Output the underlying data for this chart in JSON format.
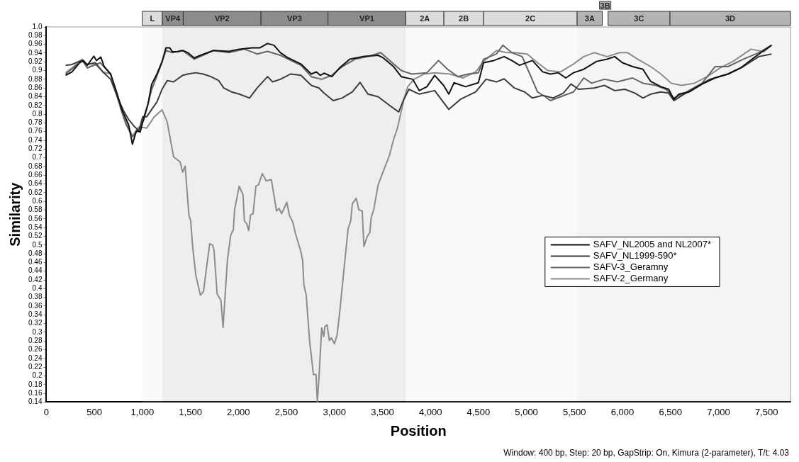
{
  "chart_data": {
    "type": "line",
    "xlabel": "Position",
    "ylabel": "Similarity",
    "annotations": [
      "Window: 400 bp, Step: 20 bp, GapStrip: On, Kimura (2-parameter), T/t: 4.03"
    ],
    "xlim": [
      0,
      7750
    ],
    "xticks": [
      0,
      {
        "value": 500,
        "label": "500"
      },
      {
        "value": 1000,
        "label": "1,000"
      },
      {
        "value": 1500,
        "label": "1,500"
      },
      {
        "value": 2000,
        "label": "2,000"
      },
      {
        "value": 2500,
        "label": "2,500"
      },
      {
        "value": 3000,
        "label": "3,000"
      },
      {
        "value": 3500,
        "label": "3,500"
      },
      {
        "value": 4000,
        "label": "4,000"
      },
      {
        "value": 4500,
        "label": "4,500"
      },
      {
        "value": 5000,
        "label": "5,000"
      },
      {
        "value": 5500,
        "label": "5,500"
      },
      {
        "value": 6000,
        "label": "6,000"
      },
      {
        "value": 6500,
        "label": "6,500"
      },
      {
        "value": 7000,
        "label": "7,000"
      },
      {
        "value": 7500,
        "label": "7,500"
      }
    ],
    "ylim": [
      0.14,
      1.0
    ],
    "yticks": [
      0.14,
      0.16,
      0.18,
      0.2,
      0.22,
      0.24,
      0.26,
      0.28,
      0.3,
      0.32,
      0.34,
      0.36,
      0.38,
      0.4,
      0.42,
      0.44,
      0.46,
      0.48,
      0.5,
      0.52,
      0.54,
      0.56,
      0.58,
      0.6,
      0.62,
      0.64,
      0.66,
      0.68,
      0.7,
      0.72,
      0.74,
      0.76,
      0.78,
      0.8,
      0.82,
      0.84,
      0.86,
      0.88,
      0.9,
      0.92,
      0.94,
      0.96,
      0.98,
      {
        "value": 1.0,
        "label": "1.0"
      }
    ],
    "grid": false,
    "legend": "right",
    "marker": "none",
    "line_style": "solid",
    "bands": [
      {
        "axis": "x",
        "from": 998,
        "to": 1208,
        "label": "L",
        "color": "#dcdcdc"
      },
      {
        "axis": "x",
        "from": 1208,
        "to": 1425,
        "label": "VP4",
        "color": "#8c8c8c"
      },
      {
        "axis": "x",
        "from": 1425,
        "to": 2235,
        "label": "VP2",
        "color": "#8c8c8c"
      },
      {
        "axis": "x",
        "from": 2235,
        "to": 2933,
        "label": "VP3",
        "color": "#8c8c8c"
      },
      {
        "axis": "x",
        "from": 2933,
        "to": 3743,
        "label": "VP1",
        "color": "#8c8c8c"
      },
      {
        "axis": "x",
        "from": 3743,
        "to": 4140,
        "label": "2A",
        "color": "#dcdcdc"
      },
      {
        "axis": "x",
        "from": 4140,
        "to": 4553,
        "label": "2B",
        "color": "#dcdcdc"
      },
      {
        "axis": "x",
        "from": 4553,
        "to": 5528,
        "label": "2C",
        "color": "#dcdcdc"
      },
      {
        "axis": "x",
        "from": 5528,
        "to": 5790,
        "label": "3A",
        "color": "#b4b4b4"
      },
      {
        "axis": "x",
        "from": 5790,
        "to": 5850,
        "label": "3B",
        "color": "#b4b4b4"
      },
      {
        "axis": "x",
        "from": 5850,
        "to": 6495,
        "label": "3C",
        "color": "#b4b4b4"
      },
      {
        "axis": "x",
        "from": 6495,
        "to": 7750,
        "label": "3D",
        "color": "#b4b4b4"
      }
    ],
    "series": [
      {
        "name": "SAFV_NL2005 and NL2007*",
        "color": "#111111",
        "x": [
          200,
          267,
          347,
          386,
          427,
          494,
          521,
          567,
          602,
          669,
          722,
          790,
          856,
          896,
          937,
          977,
          1017,
          1057,
          1097,
          1151,
          1204,
          1245,
          1285,
          1312,
          1365,
          1419,
          1473,
          1539,
          1606,
          1740,
          1901,
          2008,
          2142,
          2222,
          2303,
          2370,
          2437,
          2518,
          2651,
          2759,
          2812,
          2852,
          2893,
          2973,
          3053,
          3160,
          3294,
          3455,
          3508,
          3616,
          3696,
          3816,
          3883,
          3963,
          4044,
          4137,
          4191,
          4245,
          4365,
          4499,
          4553,
          4660,
          4767,
          4847,
          4928,
          5062,
          5169,
          5249,
          5330,
          5410,
          5490,
          5597,
          5731,
          5839,
          5919,
          5999,
          6106,
          6213,
          6294,
          6401,
          6481,
          6535,
          6589,
          6696,
          6830,
          6964,
          7098,
          7232,
          7366,
          7473,
          7553
        ],
        "values": [
          0.889,
          0.897,
          0.918,
          0.923,
          0.912,
          0.933,
          0.923,
          0.931,
          0.909,
          0.892,
          0.857,
          0.808,
          0.776,
          0.731,
          0.762,
          0.759,
          0.794,
          0.822,
          0.869,
          0.892,
          0.92,
          0.952,
          0.952,
          0.943,
          0.943,
          0.946,
          0.941,
          0.929,
          0.935,
          0.946,
          0.944,
          0.949,
          0.952,
          0.952,
          0.962,
          0.958,
          0.941,
          0.929,
          0.915,
          0.892,
          0.897,
          0.889,
          0.894,
          0.886,
          0.906,
          0.926,
          0.932,
          0.935,
          0.929,
          0.909,
          0.886,
          0.88,
          0.854,
          0.863,
          0.889,
          0.866,
          0.846,
          0.872,
          0.863,
          0.872,
          0.918,
          0.923,
          0.932,
          0.923,
          0.912,
          0.923,
          0.897,
          0.892,
          0.895,
          0.883,
          0.895,
          0.903,
          0.921,
          0.926,
          0.932,
          0.918,
          0.909,
          0.903,
          0.875,
          0.863,
          0.857,
          0.834,
          0.846,
          0.851,
          0.869,
          0.883,
          0.892,
          0.906,
          0.929,
          0.946,
          0.958
        ]
      },
      {
        "name": "SAFV_NL1999-590*",
        "color": "#3c3c3c",
        "x": [
          200,
          267,
          361,
          427,
          508,
          588,
          669,
          749,
          803,
          856,
          910,
          964,
          1003,
          1044,
          1097,
          1151,
          1204,
          1258,
          1325,
          1419,
          1473,
          1553,
          1633,
          1713,
          1794,
          1847,
          1928,
          2008,
          2115,
          2195,
          2303,
          2356,
          2437,
          2544,
          2651,
          2759,
          2839,
          2893,
          2987,
          3080,
          3187,
          3267,
          3348,
          3455,
          3562,
          3669,
          3723,
          3776,
          3883,
          4044,
          4191,
          4312,
          4472,
          4579,
          4687,
          4767,
          4874,
          4981,
          5062,
          5169,
          5276,
          5383,
          5464,
          5544,
          5705,
          5812,
          5919,
          6026,
          6133,
          6213,
          6294,
          6401,
          6481,
          6535,
          6642,
          6776,
          6910,
          7098,
          7258,
          7419,
          7553
        ],
        "values": [
          0.912,
          0.914,
          0.923,
          0.914,
          0.918,
          0.897,
          0.88,
          0.834,
          0.808,
          0.788,
          0.773,
          0.762,
          0.794,
          0.794,
          0.811,
          0.828,
          0.857,
          0.877,
          0.874,
          0.889,
          0.892,
          0.895,
          0.892,
          0.886,
          0.877,
          0.86,
          0.851,
          0.846,
          0.837,
          0.86,
          0.886,
          0.874,
          0.88,
          0.892,
          0.889,
          0.866,
          0.86,
          0.848,
          0.831,
          0.837,
          0.851,
          0.873,
          0.846,
          0.84,
          0.822,
          0.805,
          0.834,
          0.857,
          0.846,
          0.854,
          0.811,
          0.834,
          0.851,
          0.88,
          0.874,
          0.881,
          0.86,
          0.851,
          0.837,
          0.843,
          0.837,
          0.848,
          0.869,
          0.857,
          0.86,
          0.866,
          0.854,
          0.857,
          0.848,
          0.837,
          0.846,
          0.851,
          0.848,
          0.831,
          0.846,
          0.863,
          0.88,
          0.892,
          0.909,
          0.932,
          0.938
        ]
      },
      {
        "name": "SAFV-3_Geramny",
        "color": "#666666",
        "x": [
          200,
          374,
          427,
          561,
          669,
          776,
          830,
          896,
          964,
          1017,
          1097,
          1178,
          1245,
          1312,
          1419,
          1539,
          1740,
          1901,
          2062,
          2195,
          2303,
          2437,
          2651,
          2759,
          2866,
          2973,
          3080,
          3214,
          3348,
          3482,
          3616,
          3696,
          3803,
          3963,
          4084,
          4178,
          4285,
          4392,
          4499,
          4553,
          4687,
          4754,
          4847,
          4955,
          5035,
          5115,
          5196,
          5249,
          5356,
          5490,
          5597,
          5678,
          5812,
          5946,
          6106,
          6213,
          6347,
          6454,
          6535,
          6669,
          6830,
          6964,
          7098,
          7258,
          7419,
          7553
        ],
        "values": [
          0.892,
          0.923,
          0.906,
          0.918,
          0.892,
          0.811,
          0.776,
          0.748,
          0.765,
          0.788,
          0.857,
          0.903,
          0.946,
          0.941,
          0.946,
          0.926,
          0.946,
          0.941,
          0.949,
          0.938,
          0.944,
          0.935,
          0.912,
          0.886,
          0.88,
          0.889,
          0.909,
          0.926,
          0.932,
          0.941,
          0.915,
          0.9,
          0.892,
          0.895,
          0.923,
          0.903,
          0.886,
          0.892,
          0.895,
          0.926,
          0.938,
          0.958,
          0.941,
          0.932,
          0.892,
          0.851,
          0.84,
          0.831,
          0.84,
          0.851,
          0.883,
          0.871,
          0.88,
          0.874,
          0.883,
          0.871,
          0.866,
          0.857,
          0.837,
          0.851,
          0.871,
          0.909,
          0.909,
          0.926,
          0.941,
          0.958
        ]
      },
      {
        "name": "SAFV-2_Germany",
        "color": "#8c8c8c",
        "x": [
          200,
          267,
          374,
          427,
          508,
          588,
          669,
          776,
          830,
          896,
          964,
          1044,
          1124,
          1204,
          1258,
          1325,
          1392,
          1419,
          1445,
          1484,
          1503,
          1524,
          1556,
          1604,
          1637,
          1663,
          1701,
          1730,
          1746,
          1778,
          1818,
          1840,
          1885,
          1920,
          1947,
          1960,
          2008,
          2048,
          2062,
          2086,
          2107,
          2126,
          2153,
          2182,
          2209,
          2249,
          2289,
          2343,
          2397,
          2423,
          2450,
          2504,
          2530,
          2567,
          2594,
          2647,
          2669,
          2682,
          2706,
          2741,
          2781,
          2808,
          2822,
          2840,
          2867,
          2888,
          2901,
          2923,
          2947,
          2968,
          3000,
          3027,
          3054,
          3088,
          3142,
          3169,
          3187,
          3227,
          3254,
          3289,
          3307,
          3342,
          3369,
          3383,
          3409,
          3455,
          3495,
          3535,
          3575,
          3616,
          3656,
          3683,
          3723,
          3763,
          3829,
          3936,
          4044,
          4204,
          4338,
          4472,
          4553,
          4687,
          4794,
          4874,
          5008,
          5115,
          5222,
          5356,
          5490,
          5597,
          5705,
          5839,
          5972,
          6053,
          6160,
          6294,
          6401,
          6508,
          6615,
          6749,
          6883,
          7017,
          7151,
          7339,
          7473,
          7553
        ],
        "values": [
          0.895,
          0.906,
          0.926,
          0.906,
          0.915,
          0.897,
          0.892,
          0.817,
          0.782,
          0.75,
          0.771,
          0.768,
          0.794,
          0.81,
          0.782,
          0.702,
          0.691,
          0.667,
          0.681,
          0.569,
          0.555,
          0.494,
          0.431,
          0.385,
          0.394,
          0.44,
          0.503,
          0.5,
          0.488,
          0.388,
          0.373,
          0.311,
          0.465,
          0.523,
          0.535,
          0.581,
          0.635,
          0.615,
          0.555,
          0.549,
          0.533,
          0.569,
          0.572,
          0.635,
          0.638,
          0.664,
          0.647,
          0.65,
          0.578,
          0.584,
          0.572,
          0.598,
          0.569,
          0.552,
          0.526,
          0.488,
          0.465,
          0.408,
          0.385,
          0.281,
          0.203,
          0.203,
          0.14,
          0.2,
          0.31,
          0.29,
          0.313,
          0.317,
          0.281,
          0.287,
          0.274,
          0.293,
          0.344,
          0.419,
          0.537,
          0.555,
          0.595,
          0.607,
          0.581,
          0.578,
          0.497,
          0.52,
          0.529,
          0.563,
          0.581,
          0.638,
          0.661,
          0.684,
          0.707,
          0.742,
          0.768,
          0.794,
          0.834,
          0.863,
          0.88,
          0.892,
          0.895,
          0.892,
          0.883,
          0.897,
          0.921,
          0.946,
          0.941,
          0.941,
          0.938,
          0.918,
          0.9,
          0.897,
          0.915,
          0.932,
          0.941,
          0.932,
          0.941,
          0.941,
          0.926,
          0.909,
          0.892,
          0.871,
          0.866,
          0.871,
          0.886,
          0.906,
          0.921,
          0.949,
          0.943,
          0.958
        ]
      }
    ]
  }
}
